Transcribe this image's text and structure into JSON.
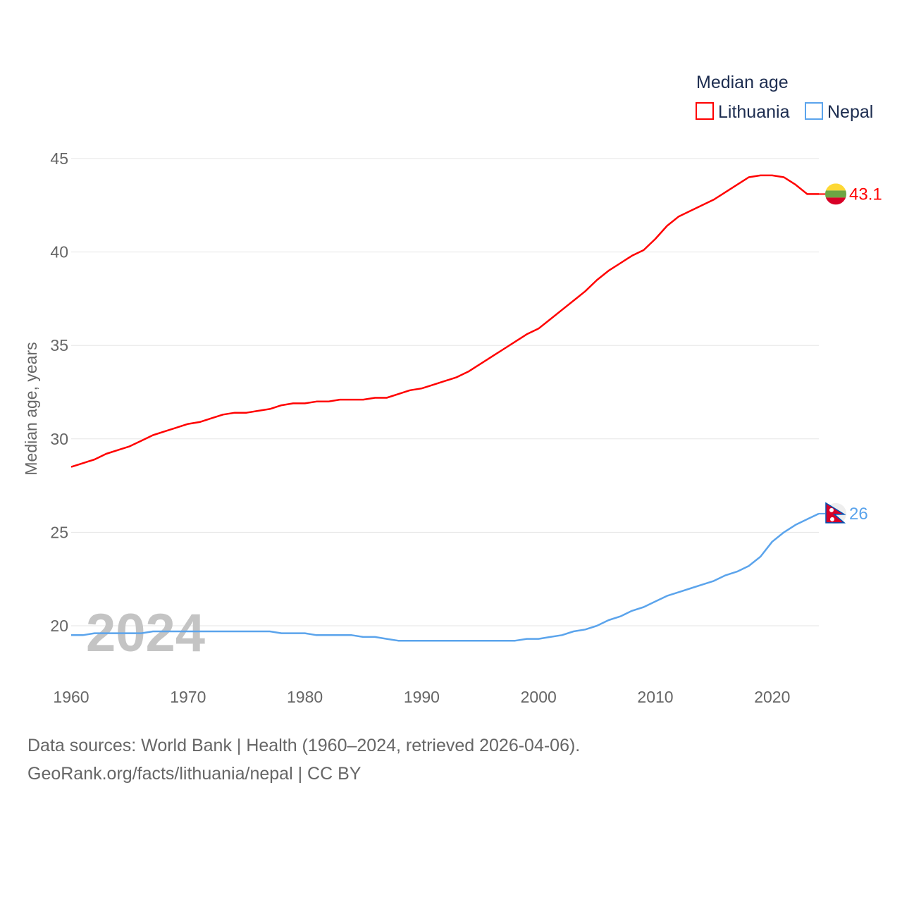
{
  "chart_data": {
    "type": "line",
    "legend_title": "Median age",
    "ylabel": "Median age, years",
    "ylim": [
      17,
      46
    ],
    "xlim": [
      1960,
      2024
    ],
    "yticks": [
      20,
      25,
      30,
      35,
      40,
      45
    ],
    "xticks": [
      1960,
      1970,
      1980,
      1990,
      2000,
      2010,
      2020
    ],
    "year_watermark": "2024",
    "grid": true,
    "legend_placement": "top-right",
    "x": [
      1960,
      1961,
      1962,
      1963,
      1964,
      1965,
      1966,
      1967,
      1968,
      1969,
      1970,
      1971,
      1972,
      1973,
      1974,
      1975,
      1976,
      1977,
      1978,
      1979,
      1980,
      1981,
      1982,
      1983,
      1984,
      1985,
      1986,
      1987,
      1988,
      1989,
      1990,
      1991,
      1992,
      1993,
      1994,
      1995,
      1996,
      1997,
      1998,
      1999,
      2000,
      2001,
      2002,
      2003,
      2004,
      2005,
      2006,
      2007,
      2008,
      2009,
      2010,
      2011,
      2012,
      2013,
      2014,
      2015,
      2016,
      2017,
      2018,
      2019,
      2020,
      2021,
      2022,
      2023,
      2024
    ],
    "series": [
      {
        "name": "Lithuania",
        "color": "#ff0000",
        "end_label": "43.1",
        "flag": "lithuania-flag",
        "values": [
          28.5,
          28.7,
          28.9,
          29.2,
          29.4,
          29.6,
          29.9,
          30.2,
          30.4,
          30.6,
          30.8,
          30.9,
          31.1,
          31.3,
          31.4,
          31.4,
          31.5,
          31.6,
          31.8,
          31.9,
          31.9,
          32.0,
          32.0,
          32.1,
          32.1,
          32.1,
          32.2,
          32.2,
          32.4,
          32.6,
          32.7,
          32.9,
          33.1,
          33.3,
          33.6,
          34.0,
          34.4,
          34.8,
          35.2,
          35.6,
          35.9,
          36.4,
          36.9,
          37.4,
          37.9,
          38.5,
          39.0,
          39.4,
          39.8,
          40.1,
          40.7,
          41.4,
          41.9,
          42.2,
          42.5,
          42.8,
          43.2,
          43.6,
          44.0,
          44.1,
          44.1,
          44.0,
          43.6,
          43.1,
          43.1
        ]
      },
      {
        "name": "Nepal",
        "color": "#5ba4ec",
        "end_label": "26",
        "flag": "nepal-flag",
        "values": [
          19.5,
          19.5,
          19.6,
          19.6,
          19.6,
          19.6,
          19.6,
          19.7,
          19.7,
          19.7,
          19.7,
          19.7,
          19.7,
          19.7,
          19.7,
          19.7,
          19.7,
          19.7,
          19.6,
          19.6,
          19.6,
          19.5,
          19.5,
          19.5,
          19.5,
          19.4,
          19.4,
          19.3,
          19.2,
          19.2,
          19.2,
          19.2,
          19.2,
          19.2,
          19.2,
          19.2,
          19.2,
          19.2,
          19.2,
          19.3,
          19.3,
          19.4,
          19.5,
          19.7,
          19.8,
          20.0,
          20.3,
          20.5,
          20.8,
          21.0,
          21.3,
          21.6,
          21.8,
          22.0,
          22.2,
          22.4,
          22.7,
          22.9,
          23.2,
          23.7,
          24.5,
          25.0,
          25.4,
          25.7,
          26.0
        ]
      }
    ]
  },
  "footer": {
    "line1": "Data sources: World Bank | Health (1960–2024, retrieved 2026-04-06).",
    "line2": "GeoRank.org/facts/lithuania/nepal | CC BY"
  }
}
